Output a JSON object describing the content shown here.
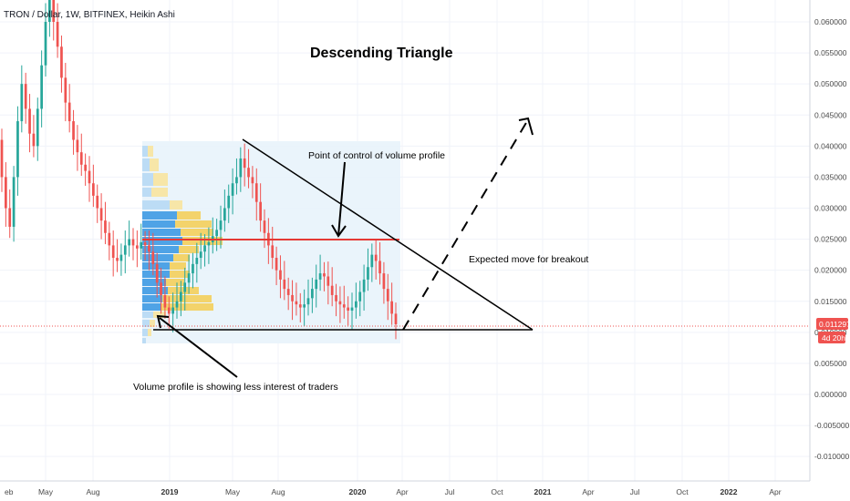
{
  "header": {
    "symbol_line": "TRON / Dollar, 1W, BITFINEX, Heikin Ashi"
  },
  "annotations": {
    "title": "Descending Triangle",
    "poc": "Point of control of volume profile",
    "expected": "Expected move for breakout",
    "less_interest": "Volume profile is showing less interest of traders"
  },
  "price_axis": {
    "ticks": [
      "0.060000",
      "0.055000",
      "0.050000",
      "0.045000",
      "0.040000",
      "0.035000",
      "0.030000",
      "0.025000",
      "0.020000",
      "0.015000",
      "0.010000",
      "0.005000",
      "0.000000",
      "-0.005000",
      "-0.010000"
    ]
  },
  "last_price": {
    "value": "0.011297",
    "countdown": "4d 20h",
    "color": "#ef5350"
  },
  "time_axis": {
    "labels": [
      {
        "text": "eb",
        "bold": false
      },
      {
        "text": "May",
        "bold": false
      },
      {
        "text": "Aug",
        "bold": false
      },
      {
        "text": "2019",
        "bold": true
      },
      {
        "text": "May",
        "bold": false
      },
      {
        "text": "Aug",
        "bold": false
      },
      {
        "text": "2020",
        "bold": true
      },
      {
        "text": "Apr",
        "bold": false
      },
      {
        "text": "Jul",
        "bold": false
      },
      {
        "text": "Oct",
        "bold": false
      },
      {
        "text": "2021",
        "bold": true
      },
      {
        "text": "Apr",
        "bold": false
      },
      {
        "text": "Jul",
        "bold": false
      },
      {
        "text": "Oct",
        "bold": false
      },
      {
        "text": "2022",
        "bold": true
      },
      {
        "text": "Apr",
        "bold": false
      }
    ]
  },
  "colors": {
    "up": "#26a69a",
    "down": "#ef5350",
    "poc_line": "#e53935",
    "profile_blue": "#4fa3e6",
    "profile_yellow": "#f3d36b",
    "range_bg": "#e8f3fb"
  },
  "chart_data": {
    "type": "candlestick",
    "ylim": [
      -0.012,
      0.063
    ],
    "support_level": 0.01,
    "poc_level": 0.0248,
    "last_value": 0.011297,
    "triangle_top_start": 0.041,
    "expected_target": 0.0445,
    "candles": [
      {
        "o": 0.041,
        "c": 0.035
      },
      {
        "o": 0.035,
        "c": 0.03
      },
      {
        "o": 0.03,
        "c": 0.027
      },
      {
        "o": 0.027,
        "c": 0.035
      },
      {
        "o": 0.035,
        "c": 0.044
      },
      {
        "o": 0.044,
        "c": 0.05
      },
      {
        "o": 0.05,
        "c": 0.046
      },
      {
        "o": 0.046,
        "c": 0.042
      },
      {
        "o": 0.042,
        "c": 0.04
      },
      {
        "o": 0.04,
        "c": 0.046
      },
      {
        "o": 0.046,
        "c": 0.053
      },
      {
        "o": 0.053,
        "c": 0.06
      },
      {
        "o": 0.06,
        "c": 0.064
      },
      {
        "o": 0.064,
        "c": 0.06
      },
      {
        "o": 0.06,
        "c": 0.056
      },
      {
        "o": 0.056,
        "c": 0.051
      },
      {
        "o": 0.051,
        "c": 0.047
      },
      {
        "o": 0.047,
        "c": 0.044
      },
      {
        "o": 0.044,
        "c": 0.041
      },
      {
        "o": 0.041,
        "c": 0.039
      },
      {
        "o": 0.039,
        "c": 0.037
      },
      {
        "o": 0.037,
        "c": 0.036
      },
      {
        "o": 0.036,
        "c": 0.034
      },
      {
        "o": 0.034,
        "c": 0.032
      },
      {
        "o": 0.032,
        "c": 0.03
      },
      {
        "o": 0.03,
        "c": 0.028
      },
      {
        "o": 0.028,
        "c": 0.026
      },
      {
        "o": 0.026,
        "c": 0.024
      },
      {
        "o": 0.024,
        "c": 0.022
      },
      {
        "o": 0.022,
        "c": 0.0215
      },
      {
        "o": 0.0215,
        "c": 0.0225
      },
      {
        "o": 0.0225,
        "c": 0.024
      },
      {
        "o": 0.024,
        "c": 0.025
      },
      {
        "o": 0.025,
        "c": 0.024
      },
      {
        "o": 0.024,
        "c": 0.0235
      },
      {
        "o": 0.0235,
        "c": 0.0245
      },
      {
        "o": 0.0245,
        "c": 0.024
      },
      {
        "o": 0.024,
        "c": 0.023
      },
      {
        "o": 0.023,
        "c": 0.021
      },
      {
        "o": 0.021,
        "c": 0.018
      },
      {
        "o": 0.018,
        "c": 0.016
      },
      {
        "o": 0.016,
        "c": 0.014
      },
      {
        "o": 0.014,
        "c": 0.013
      },
      {
        "o": 0.013,
        "c": 0.014
      },
      {
        "o": 0.014,
        "c": 0.015
      },
      {
        "o": 0.015,
        "c": 0.0165
      },
      {
        "o": 0.0165,
        "c": 0.018
      },
      {
        "o": 0.018,
        "c": 0.0195
      },
      {
        "o": 0.0195,
        "c": 0.021
      },
      {
        "o": 0.021,
        "c": 0.022
      },
      {
        "o": 0.022,
        "c": 0.023
      },
      {
        "o": 0.023,
        "c": 0.024
      },
      {
        "o": 0.024,
        "c": 0.0245
      },
      {
        "o": 0.0245,
        "c": 0.0255
      },
      {
        "o": 0.0255,
        "c": 0.0265
      },
      {
        "o": 0.0265,
        "c": 0.028
      },
      {
        "o": 0.028,
        "c": 0.03
      },
      {
        "o": 0.03,
        "c": 0.032
      },
      {
        "o": 0.032,
        "c": 0.034
      },
      {
        "o": 0.034,
        "c": 0.035
      },
      {
        "o": 0.035,
        "c": 0.038
      },
      {
        "o": 0.038,
        "c": 0.0365
      },
      {
        "o": 0.0365,
        "c": 0.035
      },
      {
        "o": 0.035,
        "c": 0.034
      },
      {
        "o": 0.034,
        "c": 0.031
      },
      {
        "o": 0.031,
        "c": 0.028
      },
      {
        "o": 0.028,
        "c": 0.026
      },
      {
        "o": 0.026,
        "c": 0.024
      },
      {
        "o": 0.024,
        "c": 0.022
      },
      {
        "o": 0.022,
        "c": 0.02
      },
      {
        "o": 0.02,
        "c": 0.0185
      },
      {
        "o": 0.0185,
        "c": 0.017
      },
      {
        "o": 0.017,
        "c": 0.016
      },
      {
        "o": 0.016,
        "c": 0.015
      },
      {
        "o": 0.015,
        "c": 0.0145
      },
      {
        "o": 0.0145,
        "c": 0.014
      },
      {
        "o": 0.014,
        "c": 0.0145
      },
      {
        "o": 0.0145,
        "c": 0.0155
      },
      {
        "o": 0.0155,
        "c": 0.017
      },
      {
        "o": 0.017,
        "c": 0.0185
      },
      {
        "o": 0.0185,
        "c": 0.0195
      },
      {
        "o": 0.0195,
        "c": 0.019
      },
      {
        "o": 0.019,
        "c": 0.0175
      },
      {
        "o": 0.0175,
        "c": 0.016
      },
      {
        "o": 0.016,
        "c": 0.015
      },
      {
        "o": 0.015,
        "c": 0.0145
      },
      {
        "o": 0.0145,
        "c": 0.014
      },
      {
        "o": 0.014,
        "c": 0.0135
      },
      {
        "o": 0.0135,
        "c": 0.014
      },
      {
        "o": 0.014,
        "c": 0.015
      },
      {
        "o": 0.015,
        "c": 0.0165
      },
      {
        "o": 0.0165,
        "c": 0.0185
      },
      {
        "o": 0.0185,
        "c": 0.0205
      },
      {
        "o": 0.0205,
        "c": 0.0225
      },
      {
        "o": 0.0225,
        "c": 0.0215
      },
      {
        "o": 0.0215,
        "c": 0.0195
      },
      {
        "o": 0.0195,
        "c": 0.017
      },
      {
        "o": 0.017,
        "c": 0.015
      },
      {
        "o": 0.015,
        "c": 0.013
      },
      {
        "o": 0.013,
        "c": 0.0113
      }
    ]
  }
}
